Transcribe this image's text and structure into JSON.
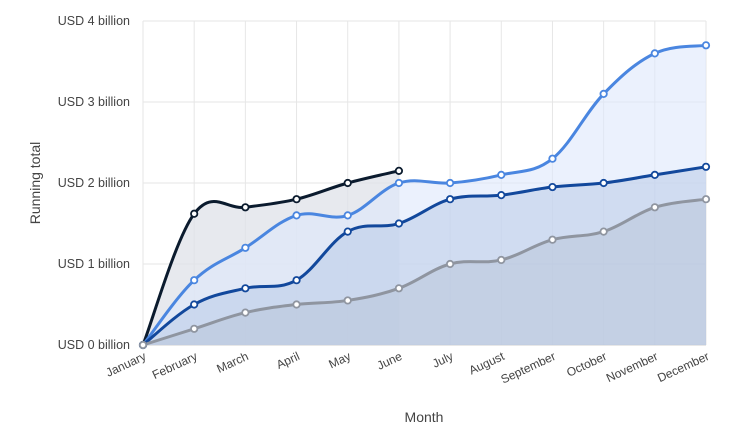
{
  "chart_data": {
    "type": "area",
    "categories": [
      "January",
      "February",
      "March",
      "April",
      "May",
      "June",
      "July",
      "August",
      "September",
      "October",
      "November",
      "December"
    ],
    "y_ticks": [
      "USD 0 billion",
      "USD 1 billion",
      "USD 2 billion",
      "USD 3 billion",
      "USD 4 billion"
    ],
    "ylim": [
      0,
      4
    ],
    "xlabel": "Month",
    "ylabel": "Running total",
    "grid": true,
    "legend": "none",
    "series": [
      {
        "values": [
          0,
          1.62,
          1.7,
          1.8,
          2.0,
          2.15,
          null,
          null,
          null,
          null,
          null,
          null
        ],
        "line_color": "#0b1b2e",
        "fill_color": "#dfe2e8",
        "fill_opacity": 0.75,
        "marker_color": "#0b1b2e"
      },
      {
        "values": [
          0,
          0.8,
          1.2,
          1.6,
          1.6,
          2.0,
          2.0,
          2.1,
          2.3,
          3.1,
          3.6,
          3.7
        ],
        "line_color": "#4a86e0",
        "fill_color": "#dde8fb",
        "fill_opacity": 0.6,
        "marker_color": "#4a86e0"
      },
      {
        "values": [
          0,
          0.5,
          0.7,
          0.8,
          1.4,
          1.5,
          1.8,
          1.85,
          1.95,
          2.0,
          2.1,
          2.2
        ],
        "line_color": "#12489c",
        "fill_color": "#b9cbe8",
        "fill_opacity": 0.55,
        "marker_color": "#12489c"
      },
      {
        "values": [
          0,
          0.2,
          0.4,
          0.5,
          0.55,
          0.7,
          1.0,
          1.05,
          1.3,
          1.4,
          1.7,
          1.8
        ],
        "line_color": "#8f95a0",
        "fill_color": "#b8c3d8",
        "fill_opacity": 0.5,
        "marker_color": "#8f95a0"
      }
    ]
  }
}
